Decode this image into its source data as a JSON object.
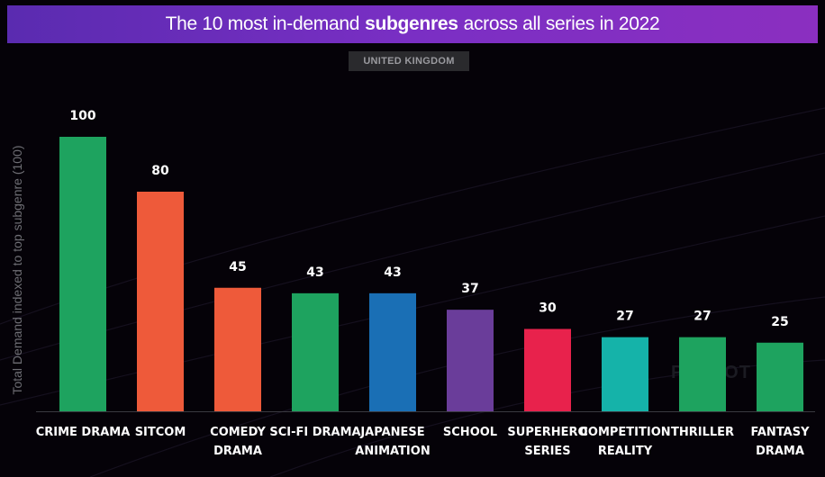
{
  "title": {
    "prefix": "The 10 most in-demand",
    "emphasis": "subgenres",
    "suffix": "across all series in 2022"
  },
  "region": "UNITED KINGDOM",
  "watermark": "PARROT",
  "chart_data": {
    "type": "bar",
    "title": "The 10 most in-demand subgenres across all series in 2022",
    "ylabel": "Total Demand indexed to top subgenre (100)",
    "ylim": [
      0,
      100
    ],
    "grid": false,
    "categories": [
      [
        "CRIME DRAMA"
      ],
      [
        "SITCOM"
      ],
      [
        "COMEDY",
        "DRAMA"
      ],
      [
        "SCI-FI DRAMA"
      ],
      [
        "JAPANESE",
        "ANIMATION"
      ],
      [
        "SCHOOL"
      ],
      [
        "SUPERHERO",
        "SERIES"
      ],
      [
        "COMPETITION",
        "REALITY"
      ],
      [
        "THRILLER"
      ],
      [
        "FANTASY",
        "DRAMA"
      ]
    ],
    "values": [
      100,
      80,
      45,
      43,
      43,
      37,
      30,
      27,
      27,
      25
    ],
    "colors": [
      "#1ea35f",
      "#ee5a3a",
      "#ee5a3a",
      "#1ea35f",
      "#1a6fb5",
      "#6a3d9a",
      "#e8224c",
      "#15b3a9",
      "#1ea35f",
      "#1ea35f"
    ]
  }
}
